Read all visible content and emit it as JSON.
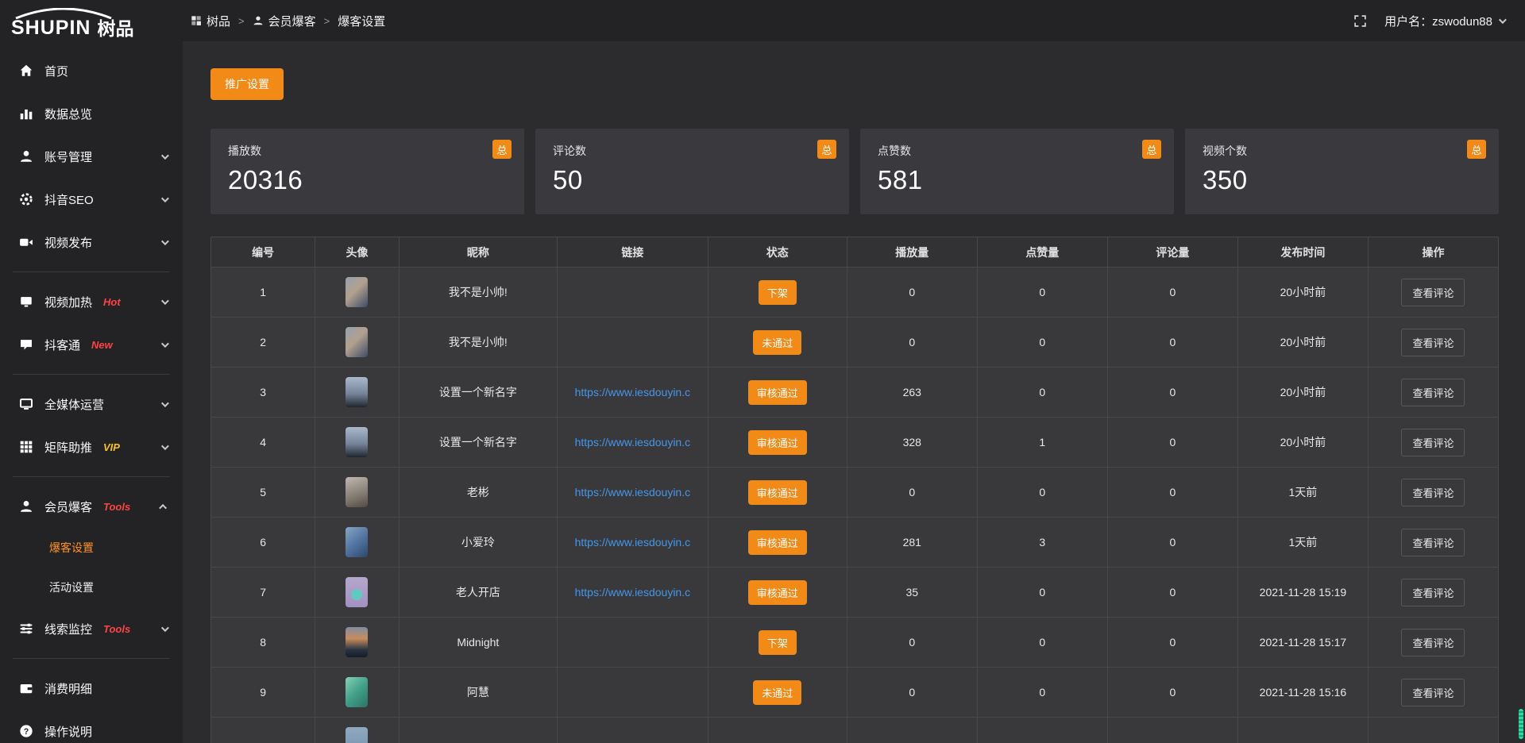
{
  "brand": {
    "name": "SHUPIN",
    "name_cn": "树品"
  },
  "topbar": {
    "breadcrumb": [
      {
        "label": "树品",
        "icon": "dashboard-icon"
      },
      {
        "label": "会员爆客",
        "icon": "person-icon"
      },
      {
        "label": "爆客设置",
        "icon": ""
      }
    ],
    "separator": ">",
    "username_label": "用户名：zswodun88"
  },
  "sidebar": {
    "items": [
      {
        "label": "首页",
        "icon": "home"
      },
      {
        "label": "数据总览",
        "icon": "chart"
      },
      {
        "label": "账号管理",
        "icon": "user",
        "chevron": "down"
      },
      {
        "label": "抖音SEO",
        "icon": "gear",
        "chevron": "down"
      },
      {
        "label": "视频发布",
        "icon": "video",
        "chevron": "down",
        "divider_after": true
      },
      {
        "label": "视频加热",
        "icon": "tv",
        "badge": "Hot",
        "badge_color": "#ff4242",
        "chevron": "down"
      },
      {
        "label": "抖客通",
        "icon": "chat",
        "badge": "New",
        "badge_color": "#ff4242",
        "chevron": "down",
        "divider_after": true
      },
      {
        "label": "全媒体运营",
        "icon": "monitor",
        "chevron": "down"
      },
      {
        "label": "矩阵助推",
        "icon": "grid",
        "badge": "VIP",
        "badge_color": "#f7c02c",
        "chevron": "down",
        "divider_after": true
      },
      {
        "label": "会员爆客",
        "icon": "user",
        "badge": "Tools",
        "badge_color": "#ff4242",
        "chevron": "up",
        "children": [
          {
            "label": "爆客设置",
            "active": true
          },
          {
            "label": "活动设置",
            "active": false
          }
        ]
      },
      {
        "label": "线索监控",
        "icon": "sliders",
        "badge": "Tools",
        "badge_color": "#ff4242",
        "chevron": "down",
        "divider_after": true
      },
      {
        "label": "消费明细",
        "icon": "wallet"
      },
      {
        "label": "操作说明",
        "icon": "question"
      }
    ]
  },
  "toolbar": {
    "promo_button": "推广设置"
  },
  "stats": [
    {
      "label": "播放数",
      "value": "20316",
      "badge": "总"
    },
    {
      "label": "评论数",
      "value": "50",
      "badge": "总"
    },
    {
      "label": "点赞数",
      "value": "581",
      "badge": "总"
    },
    {
      "label": "视频个数",
      "value": "350",
      "badge": "总"
    }
  ],
  "table": {
    "columns": [
      "编号",
      "头像",
      "昵称",
      "链接",
      "状态",
      "播放量",
      "点赞量",
      "评论量",
      "发布时间",
      "操作"
    ],
    "action_label": "查看评论",
    "rows": [
      {
        "id": "1",
        "nickname": "我不是小帅!",
        "link": "",
        "status": "下架",
        "plays": "0",
        "likes": "0",
        "comments": "0",
        "time": "20小时前",
        "avatar": "linear-gradient(135deg,#93a2ad,#b3a08e 45%,#3c4c68)"
      },
      {
        "id": "2",
        "nickname": "我不是小帅!",
        "link": "",
        "status": "未通过",
        "plays": "0",
        "likes": "0",
        "comments": "0",
        "time": "20小时前",
        "avatar": "linear-gradient(135deg,#93a2ad,#b3a08e 45%,#3c4c68)"
      },
      {
        "id": "3",
        "nickname": "设置一个新名字",
        "link": "https://www.iesdouyin.c",
        "status": "审核通过",
        "plays": "263",
        "likes": "0",
        "comments": "0",
        "time": "20小时前",
        "avatar": "linear-gradient(180deg,#a9b8ca,#76849a 55%,#20262f)"
      },
      {
        "id": "4",
        "nickname": "设置一个新名字",
        "link": "https://www.iesdouyin.c",
        "status": "审核通过",
        "plays": "328",
        "likes": "1",
        "comments": "0",
        "time": "20小时前",
        "avatar": "linear-gradient(180deg,#a9b8ca,#76849a 55%,#20262f)"
      },
      {
        "id": "5",
        "nickname": "老彬",
        "link": "https://www.iesdouyin.c",
        "status": "审核通过",
        "plays": "0",
        "likes": "0",
        "comments": "0",
        "time": "1天前",
        "avatar": "linear-gradient(160deg,#c0b9b1,#837a71 60%,#514a43)"
      },
      {
        "id": "6",
        "nickname": "小爱玲",
        "link": "https://www.iesdouyin.c",
        "status": "审核通过",
        "plays": "281",
        "likes": "3",
        "comments": "0",
        "time": "1天前",
        "avatar": "linear-gradient(140deg,#87a5c6,#4d719d 55%,#2f4769)"
      },
      {
        "id": "7",
        "nickname": "老人开店",
        "link": "https://www.iesdouyin.c",
        "status": "审核通过",
        "plays": "35",
        "likes": "0",
        "comments": "0",
        "time": "2021-11-28 15:19",
        "avatar": "radial-gradient(circle at 50% 58%,#62c9c1 0 26%,rgba(0,0,0,0) 28%),linear-gradient(180deg,#b5a7cb,#a291c1)"
      },
      {
        "id": "8",
        "nickname": "Midnight",
        "link": "",
        "status": "下架",
        "plays": "0",
        "likes": "0",
        "comments": "0",
        "time": "2021-11-28 15:17",
        "avatar": "linear-gradient(180deg,#7e8da2,#c98c5e 38%,#2b3242 75%,#161c28)"
      },
      {
        "id": "9",
        "nickname": "阿慧",
        "link": "",
        "status": "未通过",
        "plays": "0",
        "likes": "0",
        "comments": "0",
        "time": "2021-11-28 15:16",
        "avatar": "linear-gradient(135deg,#85d2b5,#41a089 50%,#2c7166)"
      },
      {
        "id": "",
        "nickname": "",
        "link": "",
        "status": "",
        "plays": "",
        "likes": "",
        "comments": "",
        "time": "",
        "avatar": "linear-gradient(180deg,#8fa9c0,#7390ab)",
        "partial": true
      }
    ]
  },
  "colors": {
    "accent_orange": "#f28a18",
    "link_blue": "#4596e8",
    "badge_red": "#ff4242",
    "badge_yellow": "#f7c02c",
    "active_menu_orange": "#ff9226",
    "scrollbar_teal": "#35d8a0"
  }
}
